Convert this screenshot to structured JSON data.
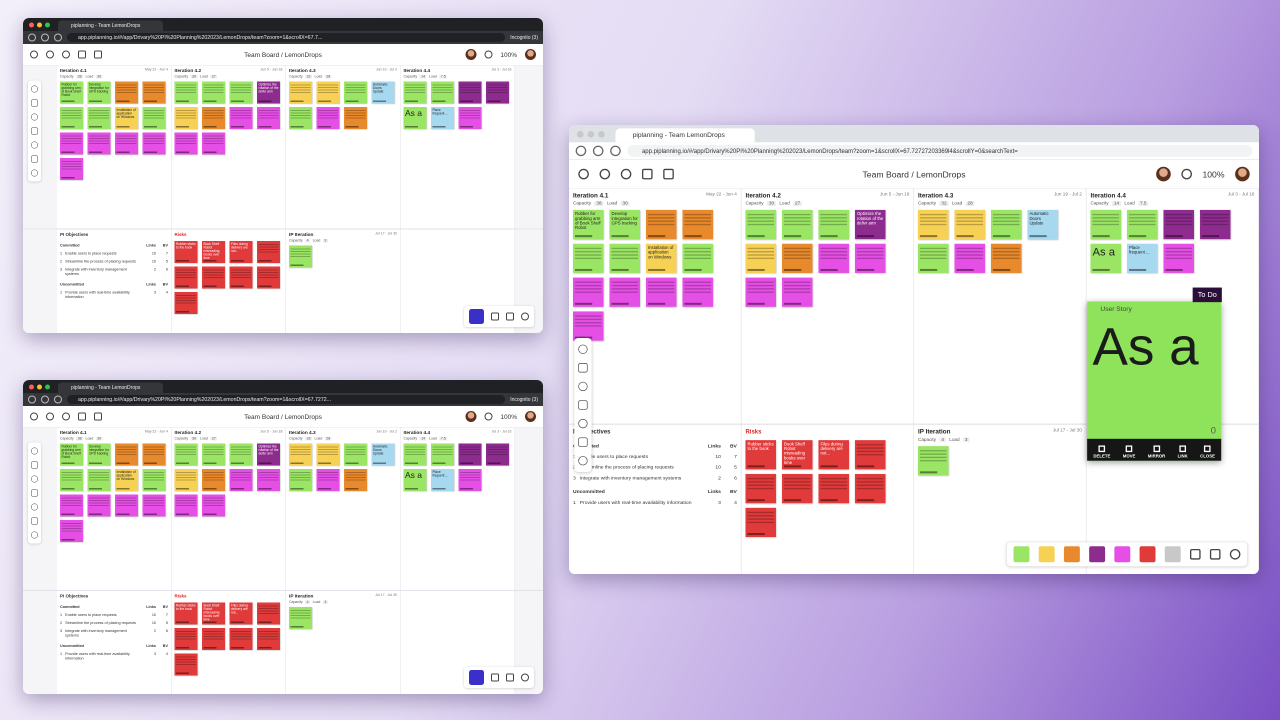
{
  "windows": [
    {
      "tab_title": "piplanning - Team LemonDrops",
      "url": "app.piplanning.io/#/app/Drivary%20PI%20Planning%202023/LemonDrops/team?zoom=1&scrollX=67.7...",
      "incognito": "Incognito (3)"
    },
    {
      "tab_title": "piplanning - Team LemonDrops",
      "url": "app.piplanning.io/#/app/Drivary%20PI%20Planning%202023/LemonDrops/team?zoom=1&scrollX=67.7272...",
      "incognito": "Incognito (3)"
    },
    {
      "tab_title": "piplanning - Team LemonDrops",
      "url": "app.piplanning.io/#/app/Drivary%20PI%20Planning%202023/LemonDrops/team?zoom=1&scrollX=67.72727203369l4&scrollY=0&searchText="
    }
  ],
  "board": {
    "title": "Team Board / LemonDrops",
    "zoom": "100%",
    "capacity_label": "Capacity",
    "load_label": "Load",
    "iterations": [
      {
        "name": "Iteration 4.1",
        "dates": "May 22 - Jun 4",
        "capacity": 38,
        "load": 30,
        "notes": [
          {
            "color": "#9be564",
            "text": "Rubber for grabbing arm of Book Shelf Robot"
          },
          {
            "color": "#9be564",
            "text": "Develop integration for GPS tracking"
          },
          {
            "color": "#e8892b"
          },
          {
            "color": "#e8892b"
          },
          {
            "color": "#9be564"
          },
          {
            "color": "#9be564"
          },
          {
            "color": "#f7d154",
            "text": "Installation of application on Windows"
          },
          {
            "color": "#9be564"
          },
          {
            "color": "#e64fe6"
          },
          {
            "color": "#e64fe6"
          },
          {
            "color": "#e64fe6"
          },
          {
            "color": "#e64fe6"
          },
          {
            "color": "#e64fe6"
          }
        ]
      },
      {
        "name": "Iteration 4.2",
        "dates": "Jun 5 - Jun 18",
        "capacity": 30,
        "load": 27,
        "notes": [
          {
            "color": "#9be564"
          },
          {
            "color": "#9be564"
          },
          {
            "color": "#9be564"
          },
          {
            "color": "#8e2b8e",
            "text": "Optimize the rotation of the delivr arm"
          },
          {
            "color": "#f7d154"
          },
          {
            "color": "#e8892b"
          },
          {
            "color": "#e64fe6"
          },
          {
            "color": "#e64fe6"
          },
          {
            "color": "#e64fe6"
          },
          {
            "color": "#e64fe6"
          }
        ]
      },
      {
        "name": "Iteration 4.3",
        "dates": "Jun 19 - Jul 2",
        "capacity": 32,
        "load": 28,
        "notes": [
          {
            "color": "#f7d154"
          },
          {
            "color": "#f7d154"
          },
          {
            "color": "#9be564"
          },
          {
            "color": "#a6d8f0",
            "text": "Automatic Doors Update"
          },
          {
            "color": "#9be564"
          },
          {
            "color": "#e64fe6"
          },
          {
            "color": "#e8892b"
          }
        ]
      },
      {
        "name": "Iteration 4.4",
        "dates": "Jul 3 - Jul 16",
        "capacity": 14,
        "load": 7.5,
        "notes": [
          {
            "color": "#9be564"
          },
          {
            "color": "#9be564"
          },
          {
            "color": "#8e2b8e"
          },
          {
            "color": "#8e2b8e"
          },
          {
            "color": "#9be564",
            "text": "As a"
          },
          {
            "color": "#a6d8f0",
            "text": "Place frequent ..."
          },
          {
            "color": "#e64fe6"
          }
        ]
      }
    ],
    "objectives": {
      "title": "PI Objectives",
      "links_label": "Links",
      "bv_label": "BV",
      "committed_label": "Committed",
      "committed": [
        {
          "num": 1,
          "text": "Enable users to place requests",
          "links": 10,
          "bv": 7
        },
        {
          "num": 2,
          "text": "Streamline the process of placing requests",
          "links": 10,
          "bv": 5
        },
        {
          "num": 3,
          "text": "Integrate with inventory management systems",
          "links": 2,
          "bv": 6
        }
      ],
      "uncommitted_label": "Uncommitted",
      "uncommitted": [
        {
          "num": 1,
          "text": "Provide users with real-time availability information",
          "links": 3,
          "bv": 4
        }
      ]
    },
    "risks": {
      "title": "Risks",
      "notes": [
        {
          "color": "#e03a3a",
          "text": "Rubber sticks to the book"
        },
        {
          "color": "#e03a3a",
          "text": "Book Shelf Robot misreading books over time"
        },
        {
          "color": "#e03a3a",
          "text": "Files during delivery are not..."
        },
        {
          "color": "#e03a3a"
        },
        {
          "color": "#e03a3a"
        },
        {
          "color": "#e03a3a"
        },
        {
          "color": "#e03a3a"
        },
        {
          "color": "#e03a3a"
        },
        {
          "color": "#e03a3a"
        }
      ]
    },
    "ip_iteration": {
      "name": "IP Iteration",
      "dates": "Jul 17 - Jul 30",
      "capacity": 4,
      "load": 3,
      "notes": [
        {
          "color": "#9be564"
        }
      ]
    }
  },
  "story_card": {
    "type": "User Story",
    "status": "To Do",
    "points": 0,
    "actions": [
      "DELETE",
      "MOVE",
      "MIRROR",
      "LINK",
      "CLOSE"
    ]
  },
  "palette": [
    "#9be564",
    "#f7d154",
    "#e8892b",
    "#8e2b8e",
    "#e64fe6",
    "#e03a3a",
    "#c8c8c8"
  ]
}
